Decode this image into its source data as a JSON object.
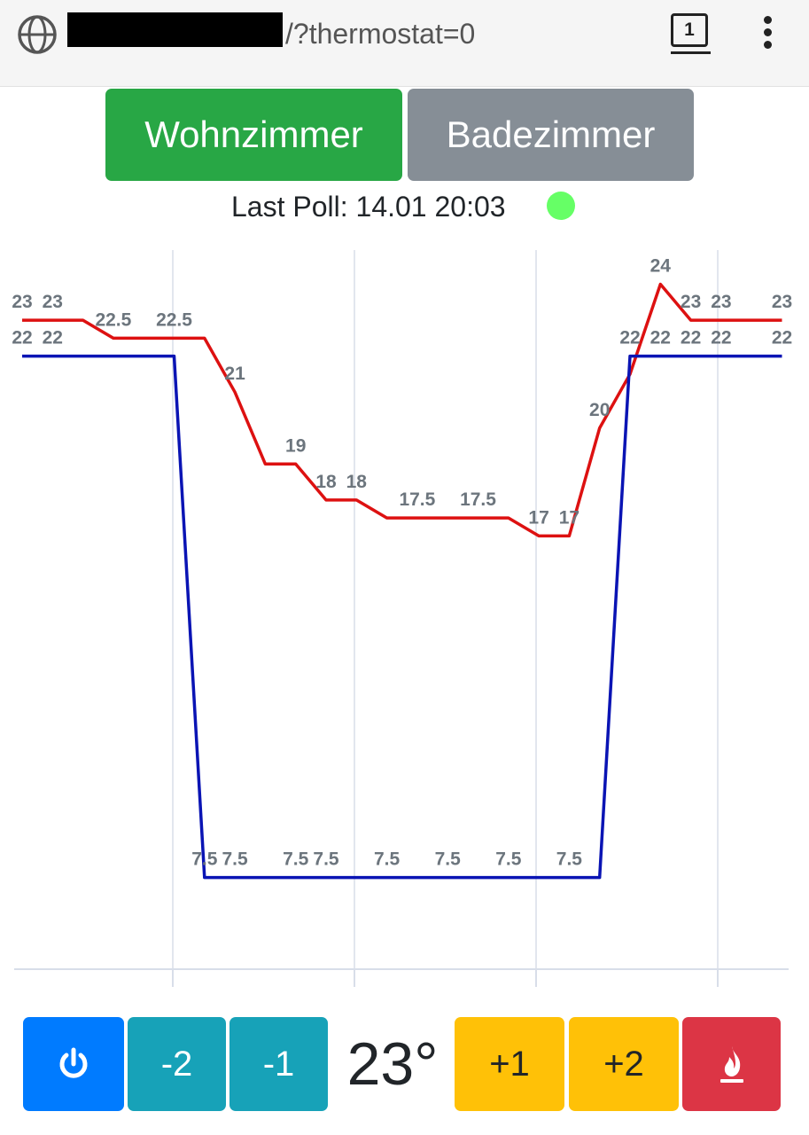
{
  "browser": {
    "url_path": "/?thermostat=0",
    "tab_count": "1"
  },
  "rooms": [
    {
      "label": "Wohnzimmer",
      "active": true,
      "color": "#28a745"
    },
    {
      "label": "Badezimmer",
      "active": false,
      "color": "#868e96"
    }
  ],
  "status": {
    "label": "Last Poll: 14.01 20:03",
    "indicator_color": "#66ff66"
  },
  "controls": {
    "power_icon": "power-icon",
    "minus2": "-2",
    "minus1": "-1",
    "temperature": "23°",
    "plus1": "+1",
    "plus2": "+2",
    "boost_icon": "flame-icon"
  },
  "chart_data": {
    "type": "line",
    "ylim": [
      5,
      25
    ],
    "x": [
      0,
      1,
      2,
      3,
      4,
      5,
      6,
      7,
      8,
      9,
      10,
      11,
      12,
      13,
      14,
      15,
      16,
      17,
      18,
      19,
      20,
      21,
      22,
      23,
      24,
      25
    ],
    "series": [
      {
        "color": "#dd1111",
        "values": [
          23,
          23,
          23,
          22.5,
          22.5,
          22.5,
          22.5,
          21,
          19,
          19,
          18,
          18,
          17.5,
          17.5,
          17.5,
          17.5,
          17.5,
          17,
          17,
          20,
          21.5,
          24,
          23,
          23,
          23,
          23
        ],
        "labels": [
          "23",
          "23",
          "",
          "22.5",
          "",
          "22.5",
          "",
          "21",
          "",
          "19",
          "18",
          "18",
          "",
          "17.5",
          "",
          "17.5",
          "",
          "17",
          "17",
          "20",
          "",
          "24",
          "23",
          "23",
          "",
          "23"
        ]
      },
      {
        "color": "#0a14b4",
        "values": [
          22,
          22,
          22,
          22,
          22,
          22,
          7.5,
          7.5,
          7.5,
          7.5,
          7.5,
          7.5,
          7.5,
          7.5,
          7.5,
          7.5,
          7.5,
          7.5,
          7.5,
          7.5,
          22,
          22,
          22,
          22,
          22,
          22
        ],
        "labels": [
          "22",
          "22",
          "",
          "",
          "",
          "",
          "7.5",
          "7.5",
          "",
          "7.5",
          "7.5",
          "",
          "7.5",
          "",
          "7.5",
          "",
          "7.5",
          "",
          "7.5",
          "",
          "22",
          "22",
          "22",
          "22",
          "",
          "22"
        ]
      }
    ]
  }
}
